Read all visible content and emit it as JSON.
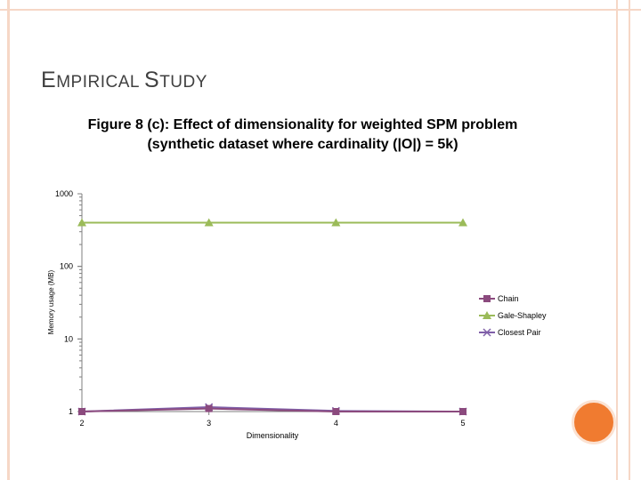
{
  "slide": {
    "title_first": "E",
    "title_small1": "MPIRICAL ",
    "title_s": "S",
    "title_small2": "TUDY"
  },
  "chart_data": {
    "type": "line",
    "title": "Figure 8 (c): Effect of dimensionality for weighted SPM problem (synthetic dataset where cardinality (|O|) = 5k)",
    "xlabel": "Dimensionality",
    "ylabel": "Memory usage (MB)",
    "y_scale": "log",
    "ylim": [
      1,
      1000
    ],
    "y_ticks": [
      "1",
      "10",
      "100",
      "1000"
    ],
    "x": [
      2,
      3,
      4,
      5
    ],
    "x_ticks": [
      "2",
      "3",
      "4",
      "5"
    ],
    "grid": false,
    "legend_position": "right",
    "series": [
      {
        "name": "Chain",
        "values": [
          1.0,
          1.1,
          1.0,
          1.0
        ],
        "color": "#8b4a7e",
        "marker": "square"
      },
      {
        "name": "Gale-Shapley",
        "values": [
          400,
          400,
          400,
          400
        ],
        "color": "#9bbb59",
        "marker": "triangle"
      },
      {
        "name": "Closest Pair",
        "values": [
          1.0,
          1.15,
          1.02,
          1.0
        ],
        "color": "#7f5fa8",
        "marker": "x"
      }
    ]
  },
  "colors": {
    "frame": "#f6d7c6",
    "accent_circle": "#f07b30"
  }
}
